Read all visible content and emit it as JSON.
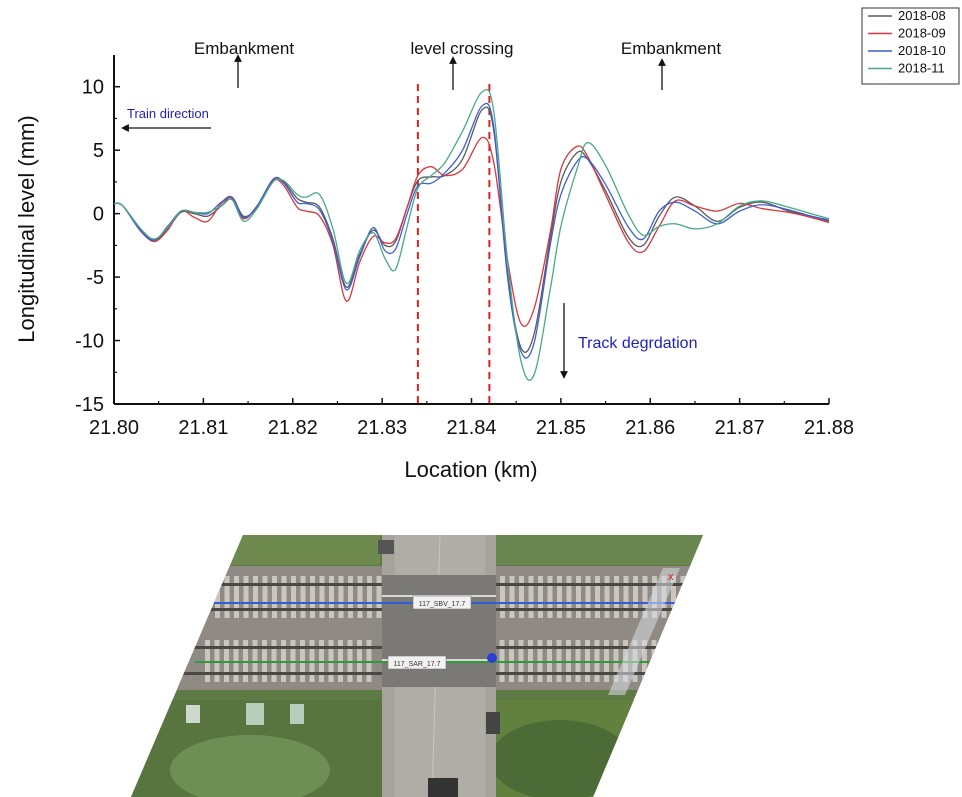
{
  "chart_data": {
    "type": "line",
    "xlabel": "Location (km)",
    "ylabel": "Longitudinal level (mm)",
    "xlim": [
      21.8,
      21.88
    ],
    "ylim": [
      -15,
      12.5
    ],
    "xticks": [
      "21.80",
      "21.81",
      "21.82",
      "21.83",
      "21.84",
      "21.85",
      "21.86",
      "21.87",
      "21.88"
    ],
    "yticks": [
      "10",
      "5",
      "0",
      "-5",
      "-10",
      "-15"
    ],
    "legend": {
      "placement": "top-right"
    },
    "grid": false,
    "vlines": [
      21.834,
      21.842
    ],
    "annotations": {
      "embankment_left": "Embankment",
      "level_crossing": "level crossing",
      "embankment_right": "Embankment",
      "train_direction": "Train direction",
      "track_degradation": "Track degrdation"
    },
    "series": [
      {
        "name": "2018-08",
        "color": "#5a5a5a",
        "points": [
          [
            21.8,
            0.8
          ],
          [
            21.801,
            0.6
          ],
          [
            21.803,
            -1.3
          ],
          [
            21.8045,
            -2.1
          ],
          [
            21.806,
            -1.2
          ],
          [
            21.8075,
            0.1
          ],
          [
            21.809,
            0.0
          ],
          [
            21.8105,
            -0.2
          ],
          [
            21.812,
            0.6
          ],
          [
            21.8132,
            1.3
          ],
          [
            21.8145,
            -0.2
          ],
          [
            21.816,
            0.5
          ],
          [
            21.8178,
            2.7
          ],
          [
            21.819,
            2.5
          ],
          [
            21.8205,
            1.2
          ],
          [
            21.8215,
            0.9
          ],
          [
            21.823,
            0.5
          ],
          [
            21.8245,
            -2.0
          ],
          [
            21.826,
            -5.8
          ],
          [
            21.8275,
            -3.2
          ],
          [
            21.829,
            -1.3
          ],
          [
            21.8303,
            -2.5
          ],
          [
            21.8315,
            -2.2
          ],
          [
            21.8328,
            0.5
          ],
          [
            21.834,
            2.6
          ],
          [
            21.8355,
            2.9
          ],
          [
            21.837,
            3.0
          ],
          [
            21.839,
            4.3
          ],
          [
            21.8412,
            8.2
          ],
          [
            21.8425,
            6.5
          ],
          [
            21.844,
            -4.5
          ],
          [
            21.8455,
            -10.5
          ],
          [
            21.847,
            -9.5
          ],
          [
            21.8488,
            -2.0
          ],
          [
            21.85,
            2.5
          ],
          [
            21.8518,
            4.8
          ],
          [
            21.853,
            4.3
          ],
          [
            21.855,
            1.8
          ],
          [
            21.8575,
            -1.8
          ],
          [
            21.8592,
            -2.5
          ],
          [
            21.861,
            -0.2
          ],
          [
            21.8628,
            1.3
          ],
          [
            21.865,
            0.6
          ],
          [
            21.8675,
            -0.6
          ],
          [
            21.87,
            0.5
          ],
          [
            21.8725,
            0.9
          ],
          [
            21.8755,
            0.2
          ],
          [
            21.878,
            -0.2
          ],
          [
            21.88,
            -0.6
          ]
        ]
      },
      {
        "name": "2018-09",
        "color": "#d9363e",
        "points": [
          [
            21.8,
            0.8
          ],
          [
            21.801,
            0.6
          ],
          [
            21.803,
            -1.3
          ],
          [
            21.8045,
            -2.2
          ],
          [
            21.806,
            -1.3
          ],
          [
            21.8075,
            0.2
          ],
          [
            21.809,
            -0.3
          ],
          [
            21.8105,
            -0.6
          ],
          [
            21.812,
            0.8
          ],
          [
            21.8132,
            1.2
          ],
          [
            21.8145,
            -0.4
          ],
          [
            21.816,
            0.6
          ],
          [
            21.8178,
            2.6
          ],
          [
            21.819,
            2.2
          ],
          [
            21.8205,
            0.5
          ],
          [
            21.8215,
            0.2
          ],
          [
            21.823,
            -0.2
          ],
          [
            21.8245,
            -2.5
          ],
          [
            21.826,
            -6.9
          ],
          [
            21.8275,
            -3.8
          ],
          [
            21.829,
            -1.8
          ],
          [
            21.8303,
            -2.3
          ],
          [
            21.8315,
            -2.0
          ],
          [
            21.8328,
            0.5
          ],
          [
            21.834,
            3.0
          ],
          [
            21.8355,
            3.7
          ],
          [
            21.837,
            3.0
          ],
          [
            21.839,
            3.5
          ],
          [
            21.8412,
            6.0
          ],
          [
            21.8425,
            4.0
          ],
          [
            21.844,
            -3.5
          ],
          [
            21.8455,
            -8.6
          ],
          [
            21.847,
            -7.5
          ],
          [
            21.8488,
            -1.5
          ],
          [
            21.85,
            3.5
          ],
          [
            21.8518,
            5.3
          ],
          [
            21.853,
            4.5
          ],
          [
            21.855,
            1.5
          ],
          [
            21.8575,
            -2.2
          ],
          [
            21.8592,
            -3.0
          ],
          [
            21.861,
            -1.0
          ],
          [
            21.8628,
            1.0
          ],
          [
            21.865,
            0.6
          ],
          [
            21.8675,
            0.2
          ],
          [
            21.87,
            0.8
          ],
          [
            21.8725,
            0.4
          ],
          [
            21.8755,
            0.1
          ],
          [
            21.878,
            -0.3
          ],
          [
            21.88,
            -0.7
          ]
        ]
      },
      {
        "name": "2018-10",
        "color": "#3c5fd6",
        "points": [
          [
            21.8,
            0.8
          ],
          [
            21.801,
            0.6
          ],
          [
            21.803,
            -1.4
          ],
          [
            21.8045,
            -2.1
          ],
          [
            21.806,
            -1.0
          ],
          [
            21.8075,
            0.2
          ],
          [
            21.809,
            0.1
          ],
          [
            21.8105,
            0.0
          ],
          [
            21.812,
            0.9
          ],
          [
            21.8132,
            1.3
          ],
          [
            21.8145,
            -0.3
          ],
          [
            21.816,
            0.6
          ],
          [
            21.8178,
            2.7
          ],
          [
            21.819,
            2.4
          ],
          [
            21.8205,
            0.9
          ],
          [
            21.8215,
            0.8
          ],
          [
            21.823,
            0.3
          ],
          [
            21.8245,
            -2.2
          ],
          [
            21.826,
            -6.0
          ],
          [
            21.8275,
            -3.4
          ],
          [
            21.829,
            -1.1
          ],
          [
            21.8303,
            -2.9
          ],
          [
            21.8315,
            -2.8
          ],
          [
            21.8328,
            0.0
          ],
          [
            21.834,
            2.2
          ],
          [
            21.8355,
            2.4
          ],
          [
            21.837,
            3.2
          ],
          [
            21.839,
            5.0
          ],
          [
            21.8412,
            8.5
          ],
          [
            21.8425,
            6.8
          ],
          [
            21.844,
            -4.8
          ],
          [
            21.8455,
            -10.8
          ],
          [
            21.847,
            -10.2
          ],
          [
            21.8488,
            -2.5
          ],
          [
            21.85,
            1.5
          ],
          [
            21.8518,
            4.1
          ],
          [
            21.853,
            4.3
          ],
          [
            21.855,
            2.3
          ],
          [
            21.8575,
            -1.0
          ],
          [
            21.8592,
            -2.0
          ],
          [
            21.861,
            0.2
          ],
          [
            21.8628,
            0.9
          ],
          [
            21.865,
            0.2
          ],
          [
            21.8675,
            -0.8
          ],
          [
            21.87,
            0.2
          ],
          [
            21.8725,
            0.7
          ],
          [
            21.8755,
            0.3
          ],
          [
            21.878,
            -0.2
          ],
          [
            21.88,
            -0.5
          ]
        ]
      },
      {
        "name": "2018-11",
        "color": "#4aa88a",
        "points": [
          [
            21.8,
            0.8
          ],
          [
            21.801,
            0.6
          ],
          [
            21.803,
            -1.2
          ],
          [
            21.8045,
            -2.0
          ],
          [
            21.806,
            -1.1
          ],
          [
            21.8075,
            0.2
          ],
          [
            21.809,
            0.1
          ],
          [
            21.8105,
            0.1
          ],
          [
            21.812,
            0.6
          ],
          [
            21.8132,
            1.1
          ],
          [
            21.8145,
            -0.6
          ],
          [
            21.816,
            0.4
          ],
          [
            21.8178,
            2.5
          ],
          [
            21.819,
            2.6
          ],
          [
            21.8205,
            1.5
          ],
          [
            21.8215,
            1.3
          ],
          [
            21.823,
            1.5
          ],
          [
            21.8245,
            -1.2
          ],
          [
            21.826,
            -5.5
          ],
          [
            21.8275,
            -2.9
          ],
          [
            21.829,
            -1.5
          ],
          [
            21.8303,
            -3.5
          ],
          [
            21.8315,
            -4.4
          ],
          [
            21.8328,
            -1.0
          ],
          [
            21.834,
            2.0
          ],
          [
            21.8355,
            3.0
          ],
          [
            21.837,
            4.0
          ],
          [
            21.839,
            6.5
          ],
          [
            21.8412,
            9.6
          ],
          [
            21.8425,
            8.0
          ],
          [
            21.844,
            -3.5
          ],
          [
            21.8455,
            -11.5
          ],
          [
            21.847,
            -12.7
          ],
          [
            21.8488,
            -6.0
          ],
          [
            21.85,
            -1.0
          ],
          [
            21.8518,
            3.5
          ],
          [
            21.853,
            5.6
          ],
          [
            21.855,
            3.8
          ],
          [
            21.8575,
            0.0
          ],
          [
            21.8592,
            -1.7
          ],
          [
            21.861,
            -1.0
          ],
          [
            21.8628,
            -0.8
          ],
          [
            21.865,
            -1.2
          ],
          [
            21.8675,
            -0.8
          ],
          [
            21.87,
            0.6
          ],
          [
            21.8725,
            1.0
          ],
          [
            21.8755,
            0.5
          ],
          [
            21.878,
            0.0
          ],
          [
            21.88,
            -0.4
          ]
        ]
      }
    ]
  },
  "photo": {
    "labels": [
      "117_SBV_17.7",
      "117_SAR_17.7"
    ],
    "marker": "x",
    "icons": {
      "close": "close-icon"
    }
  }
}
